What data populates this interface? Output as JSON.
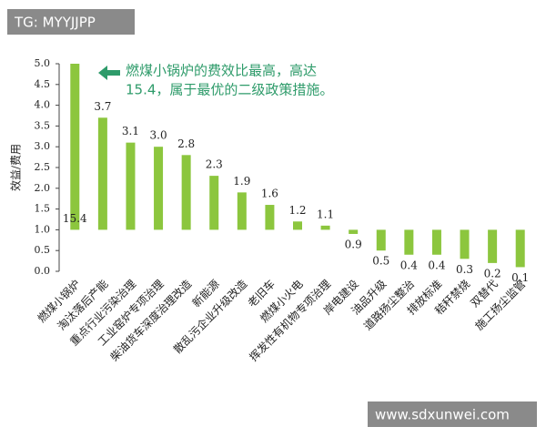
{
  "chart_data": {
    "type": "bar",
    "watermarks": [
      "TG: MYYJJPP",
      "www.sdxunwei.com"
    ],
    "ylabel": "效益/费用",
    "annotation": [
      "燃煤小锅炉的费效比最高，高达",
      "15.4，属于最优的二级政策措施。"
    ],
    "categories": [
      "燃煤小锅炉",
      "淘汰落后产能",
      "重点行业污染治理",
      "工业窑炉专项治理",
      "柴油货车深度治理改造",
      "新能源",
      "散乱污企业升级改造",
      "老旧车",
      "燃煤小火电",
      "挥发性有机物专项治理",
      "岸电建设",
      "油品升级",
      "道路扬尘整治",
      "排放标准",
      "秸秆禁烧",
      "双替代",
      "施工扬尘监管"
    ],
    "values": [
      15.4,
      3.7,
      3.1,
      3.0,
      2.8,
      2.3,
      1.9,
      1.6,
      1.2,
      1.1,
      0.9,
      0.5,
      0.4,
      0.4,
      0.3,
      0.2,
      0.1
    ],
    "value_labels": [
      "15.4",
      "3.7",
      "3.1",
      "3.0",
      "2.8",
      "2.3",
      "1.9",
      "1.6",
      "1.2",
      "1.1",
      "0.9",
      "0.5",
      "0.4",
      "0.4",
      "0.3",
      "0.2",
      "0.1"
    ],
    "color": "#8cc63e",
    "baseline": 1,
    "ylim": [
      0,
      5
    ],
    "yticks": [
      {
        "value": 0,
        "label": "0.0"
      },
      {
        "value": 0.5,
        "label": "0.5"
      },
      {
        "value": 1,
        "label": "1.0"
      },
      {
        "value": 1.5,
        "label": "1.5"
      },
      {
        "value": 2,
        "label": "2.0"
      },
      {
        "value": 2.5,
        "label": "2.5"
      },
      {
        "value": 3,
        "label": "3.0"
      },
      {
        "value": 3.5,
        "label": "3.5"
      },
      {
        "value": 4,
        "label": "4.0"
      },
      {
        "value": 4.5,
        "label": "4.5"
      },
      {
        "value": 5,
        "label": "5.0"
      }
    ]
  }
}
